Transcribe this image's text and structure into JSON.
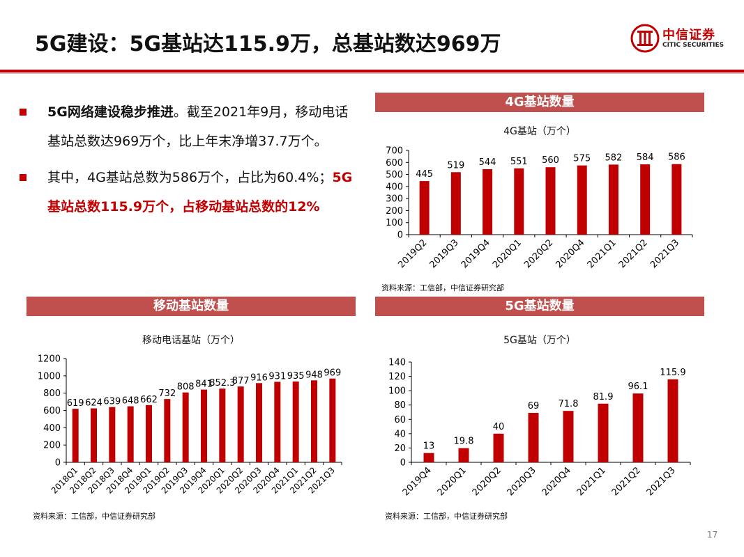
{
  "page": {
    "title": "5G建设：5G基站达115.9万，总基站数达969万",
    "page_number": "17"
  },
  "logo": {
    "name_cn": "中信证券",
    "name_en": "CITIC SECURITIES",
    "brand_color": "#c00000"
  },
  "bullets": [
    {
      "strong": "5G网络建设稳步推进",
      "text": "。截至2021年9月，移动电话基站总数达969万个，比上年末净增37.7万个。",
      "red": ""
    },
    {
      "strong": "",
      "text": "其中，4G基站总数为586万个，占比为60.4%；",
      "red": "5G基站总数115.9万个，占移动基站总数的12%"
    }
  ],
  "colors": {
    "bar": "#c00000",
    "banner": "#c0504d",
    "accent": "#c00000"
  },
  "chart_data": [
    {
      "id": "4g",
      "banner": "4G基站数量",
      "type": "bar",
      "title": "4G基站（万个）",
      "categories": [
        "2019Q2",
        "2019Q3",
        "2019Q4",
        "2020Q1",
        "2020Q2",
        "2020Q4",
        "2021Q1",
        "2021Q2",
        "2021Q3"
      ],
      "values": [
        445,
        519,
        544,
        551,
        560,
        575,
        582,
        584,
        586
      ],
      "value_labels": [
        "445",
        "519",
        "544",
        "551",
        "560",
        "575",
        "582",
        "584",
        "586"
      ],
      "ylim": [
        0,
        700
      ],
      "yticks": [
        0,
        100,
        200,
        300,
        400,
        500,
        600,
        700
      ],
      "grid": false,
      "source": "资料来源：工信部，中信证券研究部"
    },
    {
      "id": "mobile",
      "banner": "移动基站数量",
      "type": "bar",
      "title": "移动电话基站（万个）",
      "categories": [
        "2018Q1",
        "2018Q2",
        "2018Q3",
        "2018Q4",
        "2019Q1",
        "2019Q2",
        "2019Q3",
        "2019Q4",
        "2020Q1",
        "2020Q2",
        "2020Q3",
        "2020Q4",
        "2021Q1",
        "2021Q2",
        "2021Q3"
      ],
      "values": [
        619,
        624,
        639,
        648,
        662,
        732,
        808,
        841,
        852.3,
        877,
        916,
        931,
        935,
        948,
        969
      ],
      "value_labels": [
        "619",
        "624",
        "639",
        "648",
        "662",
        "732",
        "808",
        "841",
        "852.3",
        "877",
        "916",
        "931",
        "935",
        "948",
        "969"
      ],
      "ylim": [
        0,
        1200
      ],
      "yticks": [
        0,
        200,
        400,
        600,
        800,
        1000,
        1200
      ],
      "grid": false,
      "source": "资料来源：工信部，中信证券研究部"
    },
    {
      "id": "5g",
      "banner": "5G基站数量",
      "type": "bar",
      "title": "5G基站（万个）",
      "categories": [
        "2019Q4",
        "2020Q1",
        "2020Q2",
        "2020Q3",
        "2020Q4",
        "2021Q1",
        "2021Q2",
        "2021Q3"
      ],
      "values": [
        13,
        19.8,
        40,
        69,
        71.8,
        81.9,
        96.1,
        115.9
      ],
      "value_labels": [
        "13",
        "19.8",
        "40",
        "69",
        "71.8",
        "81.9",
        "96.1",
        "115.9"
      ],
      "ylim": [
        0,
        140
      ],
      "yticks": [
        0,
        20,
        40,
        60,
        80,
        100,
        120,
        140
      ],
      "grid": false,
      "source": "资料来源：工信部，中信证券研究部"
    }
  ]
}
